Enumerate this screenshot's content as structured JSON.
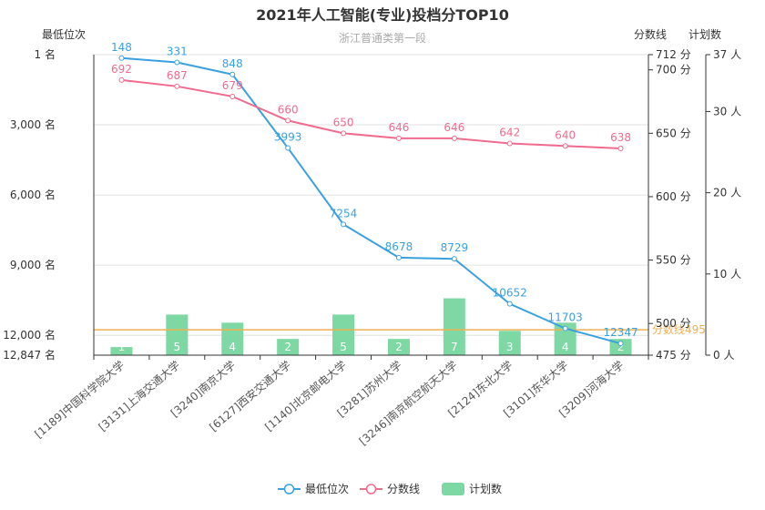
{
  "chart_data": {
    "type": "bar",
    "title": "2021年人工智能(专业)投档分TOP10",
    "subtitle": "浙江普通类第一段",
    "categories": [
      "[1189]中国科学院大学",
      "[3131]上海交通大学",
      "[3240]南京大学",
      "[6127]西安交通大学",
      "[1140]北京邮电大学",
      "[3281]苏州大学",
      "[3246]南京航空航天大学",
      "[2124]东北大学",
      "[3101]东华大学",
      "[3209]河海大学"
    ],
    "series": [
      {
        "name": "最低位次",
        "type": "line",
        "axis": "rank",
        "color": "#3ba0e0",
        "values": [
          148,
          331,
          848,
          3993,
          7254,
          8678,
          8729,
          10652,
          11703,
          12347
        ]
      },
      {
        "name": "分数线",
        "type": "line",
        "axis": "score",
        "color": "#f06b8e",
        "values": [
          692,
          687,
          679,
          660,
          650,
          646,
          646,
          642,
          640,
          638
        ]
      },
      {
        "name": "计划数",
        "type": "bar",
        "axis": "plan",
        "color": "#7dd8a4",
        "values": [
          1,
          5,
          4,
          2,
          5,
          2,
          7,
          3,
          4,
          2
        ]
      }
    ],
    "axes": {
      "rank": {
        "name": "最低位次",
        "position": "left",
        "inverse": true,
        "min": 1,
        "max": 12847,
        "ticks": [
          1,
          3000,
          6000,
          9000,
          12000,
          12847
        ],
        "tick_labels": [
          "1 名",
          "3,000 名",
          "6,000 名",
          "9,000 名",
          "12,000 名",
          "12,847 名"
        ]
      },
      "score": {
        "name": "分数线",
        "position": "right",
        "min": 475,
        "max": 712,
        "ticks": [
          475,
          500,
          550,
          600,
          650,
          700,
          712
        ],
        "tick_labels": [
          "475 分",
          "500 分",
          "550 分",
          "600 分",
          "650 分",
          "700 分",
          "712 分"
        ]
      },
      "plan": {
        "name": "计划数",
        "position": "right-outer",
        "min": 0,
        "max": 37,
        "ticks": [
          0,
          10,
          20,
          30,
          37
        ],
        "tick_labels": [
          "0 人",
          "10 人",
          "20 人",
          "30 人",
          "37 人"
        ]
      }
    },
    "markline": {
      "label": "分数线495",
      "score": 495,
      "color": "#f0b050"
    },
    "legend": {
      "position": "bottom-center"
    },
    "grid": true
  }
}
